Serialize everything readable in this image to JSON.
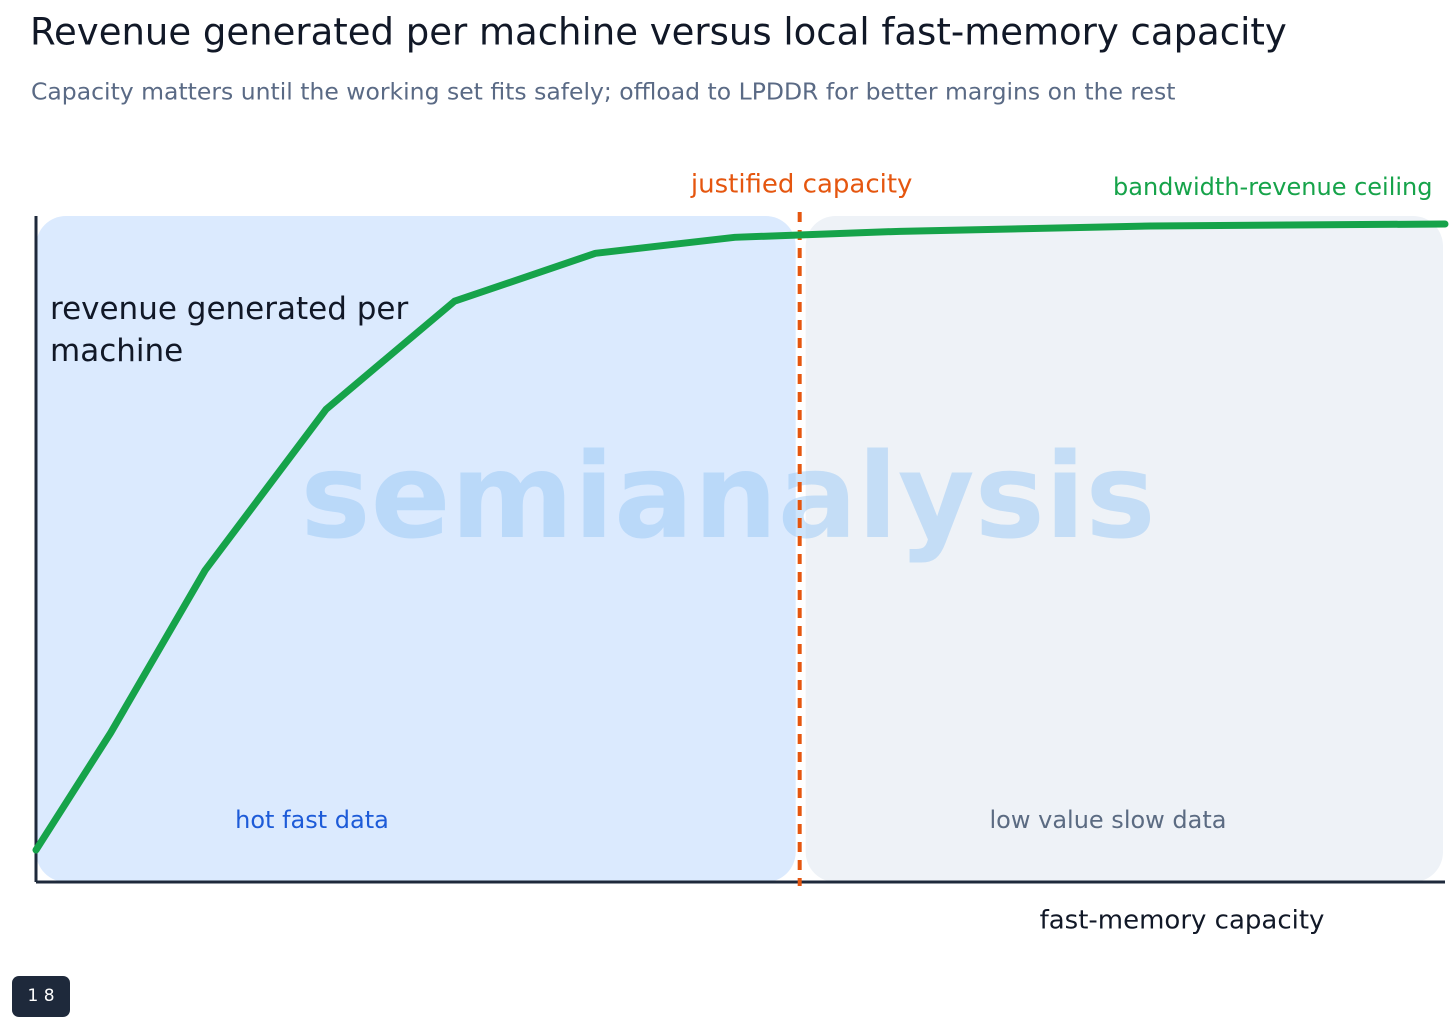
{
  "chart_data": {
    "type": "line",
    "title": "Revenue generated per machine versus local fast-memory capacity",
    "subtitle": "Capacity matters until the working set fits safely; offload to LPDDR for better margins on the rest",
    "x_label": "fast-memory capacity",
    "y_label": "revenue generated per machine",
    "x": [
      0,
      5.3,
      12.0,
      20.6,
      29.7,
      39.7,
      49.6,
      61.3,
      79.1,
      100
    ],
    "series": [
      {
        "name": "bandwidth-revenue ceiling",
        "color": "#16a34a",
        "values": [
          4.8,
          22.4,
          46.8,
          71.0,
          87.2,
          94.4,
          96.8,
          97.7,
          98.5,
          98.8
        ]
      }
    ],
    "xlim": [
      0,
      100
    ],
    "ylim": [
      0,
      100
    ],
    "threshold": {
      "label": "justified capacity",
      "x": 54.2,
      "color": "#e5560f"
    },
    "regions": [
      {
        "label": "hot fast data",
        "color": "#dbeafe",
        "text_color": "#1d5bd8"
      },
      {
        "label": "low value slow data",
        "color": "#eef2f7",
        "text_color": "#5b6b82"
      }
    ],
    "watermark": "semianalysis"
  },
  "badge": "1 8"
}
